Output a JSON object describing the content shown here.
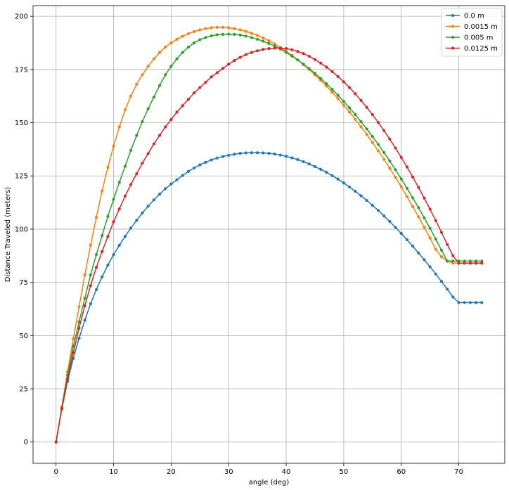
{
  "chart_data": {
    "type": "line",
    "title": "",
    "xlabel": "angle (deg)",
    "ylabel": "Distance Traveled (meters)",
    "xlim": [
      -4,
      78
    ],
    "ylim": [
      -10,
      205
    ],
    "xticks": [
      0,
      10,
      20,
      30,
      40,
      50,
      60,
      70
    ],
    "yticks": [
      0,
      25,
      50,
      75,
      100,
      125,
      150,
      175,
      200
    ],
    "grid": true,
    "legend_position": "top-right",
    "series": [
      {
        "name": "0.0 m",
        "color": "#1f77b4",
        "x": [
          0,
          1,
          2,
          3,
          4,
          5,
          6,
          7,
          8,
          9,
          10,
          11,
          12,
          13,
          14,
          15,
          16,
          17,
          18,
          19,
          20,
          21,
          22,
          23,
          24,
          25,
          26,
          27,
          28,
          29,
          30,
          31,
          32,
          33,
          34,
          35,
          36,
          37,
          38,
          39,
          40,
          41,
          42,
          43,
          44,
          45,
          46,
          47,
          48,
          49,
          50,
          51,
          52,
          53,
          54,
          55,
          56,
          57,
          58,
          59,
          60,
          61,
          62,
          63,
          64,
          65,
          66,
          67,
          68,
          69,
          70,
          71,
          72,
          73,
          74
        ],
        "y": [
          0,
          15.5,
          28.5,
          39.3,
          48.7,
          57.2,
          64.9,
          71.6,
          77.6,
          83.1,
          88.0,
          92.4,
          96.6,
          100.5,
          104.1,
          107.6,
          110.8,
          113.7,
          116.4,
          119.0,
          121.2,
          123.2,
          125.2,
          127.1,
          128.7,
          130.2,
          131.4,
          132.5,
          133.4,
          134.1,
          134.7,
          135.2,
          135.6,
          135.8,
          135.9,
          135.9,
          135.8,
          135.6,
          135.3,
          134.8,
          134.2,
          133.5,
          132.7,
          131.7,
          130.6,
          129.4,
          128.1,
          126.7,
          125.1,
          123.5,
          121.7,
          119.8,
          117.8,
          115.7,
          113.5,
          111.2,
          108.8,
          106.2,
          103.6,
          100.8,
          98.0,
          95.0,
          92.0,
          88.8,
          85.6,
          82.3,
          78.9,
          75.4,
          71.8,
          68.1,
          65.5,
          65.5,
          65.5,
          65.5,
          65.5
        ]
      },
      {
        "name": "0.0015 m",
        "color": "#ff7f0e",
        "x": [
          0,
          1,
          2,
          3,
          4,
          5,
          6,
          7,
          8,
          9,
          10,
          11,
          12,
          13,
          14,
          15,
          16,
          17,
          18,
          19,
          20,
          21,
          22,
          23,
          24,
          25,
          26,
          27,
          28,
          29,
          30,
          31,
          32,
          33,
          34,
          35,
          36,
          37,
          38,
          39,
          40,
          41,
          42,
          43,
          44,
          45,
          46,
          47,
          48,
          49,
          50,
          51,
          52,
          53,
          54,
          55,
          56,
          57,
          58,
          59,
          60,
          61,
          62,
          63,
          64,
          65,
          66,
          67,
          68,
          69,
          70,
          71,
          72,
          73,
          74
        ],
        "y": [
          0,
          16.5,
          33.0,
          48.5,
          63.5,
          78.5,
          92.5,
          105.5,
          118.0,
          129.0,
          139.0,
          148.0,
          156.0,
          162.5,
          168.0,
          172.5,
          176.5,
          180.0,
          183.0,
          185.5,
          187.5,
          189.2,
          190.6,
          191.8,
          192.8,
          193.6,
          194.2,
          194.6,
          194.8,
          194.8,
          194.6,
          194.2,
          193.6,
          192.9,
          192.0,
          191.0,
          189.8,
          188.5,
          187.0,
          185.3,
          183.5,
          181.6,
          179.5,
          177.3,
          175.0,
          172.5,
          169.9,
          167.2,
          164.3,
          161.3,
          158.2,
          155.0,
          151.6,
          148.1,
          144.5,
          140.7,
          136.8,
          132.8,
          128.6,
          124.3,
          119.9,
          115.3,
          110.6,
          105.8,
          100.8,
          95.8,
          90.5,
          87.0,
          85.0,
          84.0,
          84.0,
          84.0,
          84.0,
          84.0,
          84.0
        ]
      },
      {
        "name": "0.005 m",
        "color": "#2ca02c",
        "x": [
          0,
          1,
          2,
          3,
          4,
          5,
          6,
          7,
          8,
          9,
          10,
          11,
          12,
          13,
          14,
          15,
          16,
          17,
          18,
          19,
          20,
          21,
          22,
          23,
          24,
          25,
          26,
          27,
          28,
          29,
          30,
          31,
          32,
          33,
          34,
          35,
          36,
          37,
          38,
          39,
          40,
          41,
          42,
          43,
          44,
          45,
          46,
          47,
          48,
          49,
          50,
          51,
          52,
          53,
          54,
          55,
          56,
          57,
          58,
          59,
          60,
          61,
          62,
          63,
          64,
          65,
          66,
          67,
          68,
          69,
          70,
          71,
          72,
          73,
          74
        ],
        "y": [
          0,
          16.0,
          31.5,
          45.0,
          56.5,
          67.5,
          78.5,
          88.0,
          97.0,
          106.0,
          114.0,
          122.0,
          129.5,
          137.0,
          144.0,
          150.5,
          156.5,
          162.0,
          167.5,
          172.5,
          176.5,
          180.0,
          183.0,
          185.5,
          187.5,
          189.0,
          190.0,
          190.8,
          191.3,
          191.5,
          191.6,
          191.5,
          191.2,
          190.7,
          190.0,
          189.2,
          188.3,
          187.2,
          186.0,
          184.6,
          183.0,
          181.3,
          179.5,
          177.5,
          175.4,
          173.2,
          170.8,
          168.3,
          165.7,
          162.9,
          160.0,
          157.0,
          153.8,
          150.5,
          147.1,
          143.5,
          139.8,
          136.0,
          132.0,
          127.9,
          123.6,
          119.2,
          114.7,
          110.1,
          105.3,
          100.4,
          95.3,
          90.1,
          85.0,
          85.0,
          85.0,
          85.0,
          85.0,
          85.0,
          85.0
        ]
      },
      {
        "name": "0.0125 m",
        "color": "#d62728",
        "x": [
          0,
          1,
          2,
          3,
          4,
          5,
          6,
          7,
          8,
          9,
          10,
          11,
          12,
          13,
          14,
          15,
          16,
          17,
          18,
          19,
          20,
          21,
          22,
          23,
          24,
          25,
          26,
          27,
          28,
          29,
          30,
          31,
          32,
          33,
          34,
          35,
          36,
          37,
          38,
          39,
          40,
          41,
          42,
          43,
          44,
          45,
          46,
          47,
          48,
          49,
          50,
          51,
          52,
          53,
          54,
          55,
          56,
          57,
          58,
          59,
          60,
          61,
          62,
          63,
          64,
          65,
          66,
          67,
          68,
          69,
          70,
          71,
          72,
          73,
          74
        ],
        "y": [
          0,
          15.5,
          29.5,
          42.0,
          53.5,
          64.0,
          73.5,
          82.0,
          89.5,
          96.5,
          103.5,
          109.5,
          115.5,
          121.0,
          126.0,
          131.0,
          135.5,
          140.0,
          144.0,
          148.0,
          151.5,
          155.0,
          158.0,
          161.0,
          164.0,
          166.5,
          169.0,
          171.5,
          173.5,
          175.5,
          177.5,
          179.2,
          180.7,
          182.0,
          183.0,
          183.8,
          184.4,
          184.8,
          185.0,
          185.0,
          184.8,
          184.3,
          183.5,
          182.5,
          181.2,
          179.7,
          178.0,
          176.1,
          174.0,
          171.7,
          169.2,
          166.5,
          163.6,
          160.5,
          157.2,
          153.8,
          150.1,
          146.3,
          142.3,
          138.1,
          133.7,
          129.2,
          124.5,
          119.6,
          114.6,
          109.4,
          104.0,
          98.5,
          92.8,
          87.5,
          84.0,
          84.0,
          84.0,
          84.0,
          84.0
        ]
      }
    ]
  }
}
